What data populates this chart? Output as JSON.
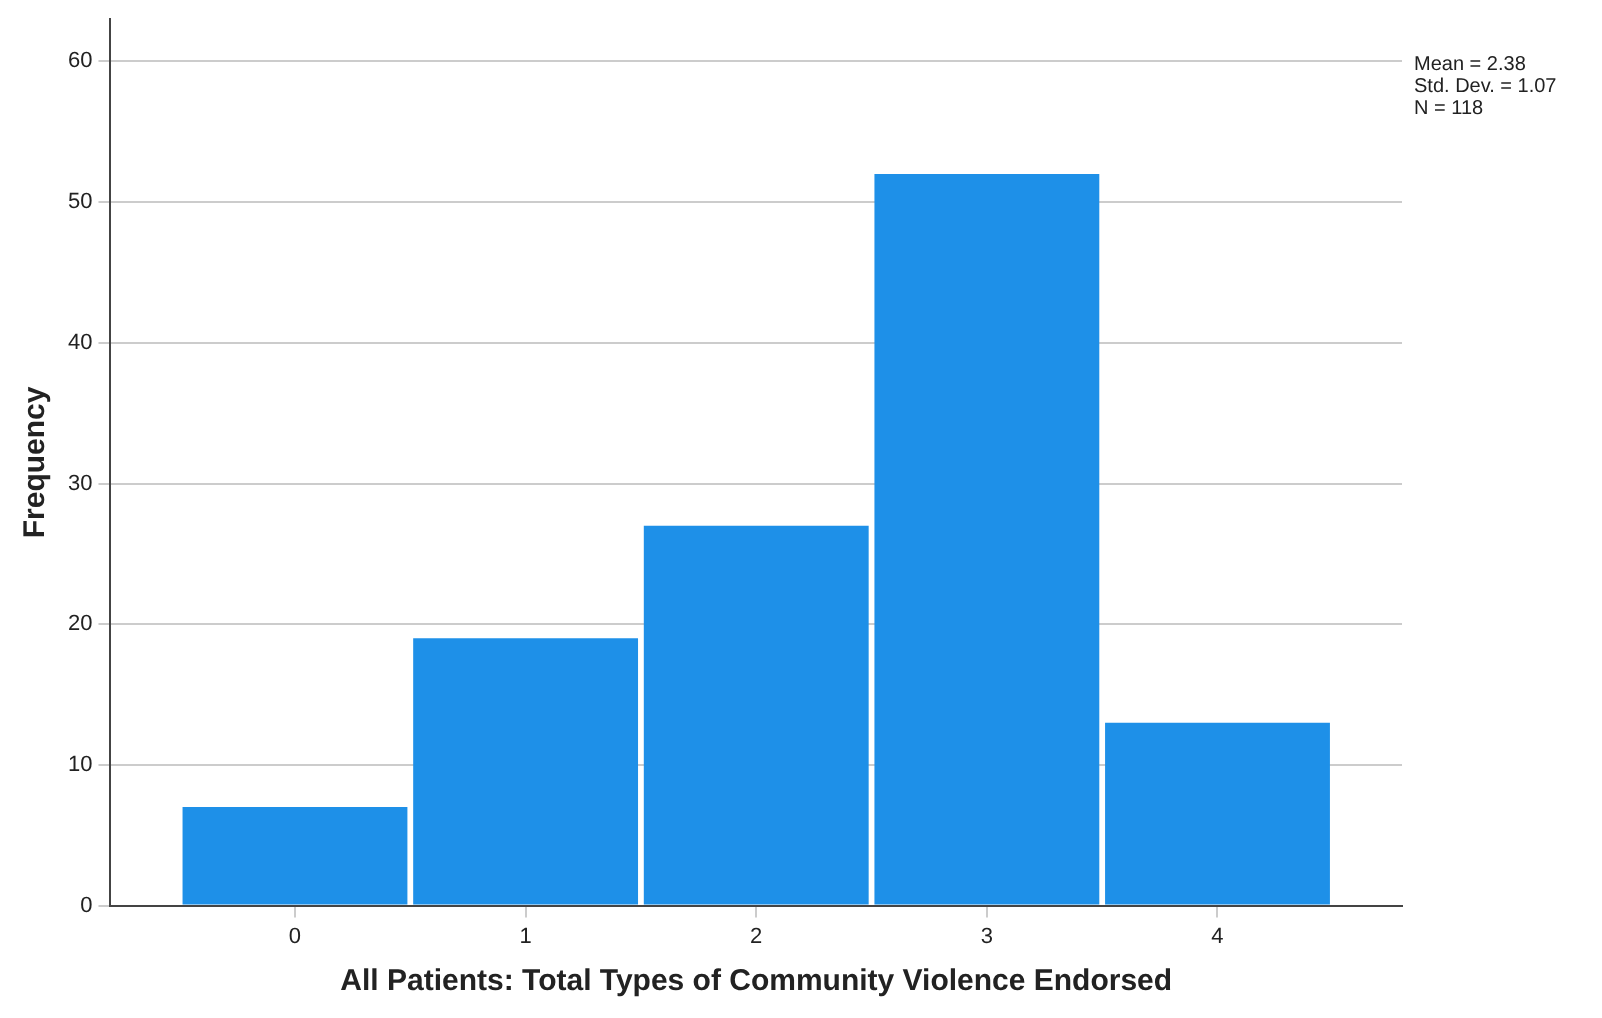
{
  "chart_data": {
    "type": "histogram",
    "xlabel": "All Patients: Total Types of Community Violence Endorsed",
    "ylabel": "Frequency",
    "bins": [
      -0.5,
      0.5,
      1.5,
      2.5,
      3.5,
      4.5
    ],
    "values": [
      7,
      19,
      27,
      52,
      13
    ],
    "color": "#1e90e8",
    "xlim": [
      -0.8,
      4.8
    ],
    "xticks": [
      0,
      1,
      2,
      3,
      4
    ],
    "ylim": [
      0,
      63
    ],
    "yticks": [
      0,
      10,
      20,
      30,
      40,
      50,
      60
    ],
    "grid": "y",
    "annotations": [
      "Mean = 2.38",
      "Std. Dev. = 1.07",
      "N = 118"
    ]
  }
}
